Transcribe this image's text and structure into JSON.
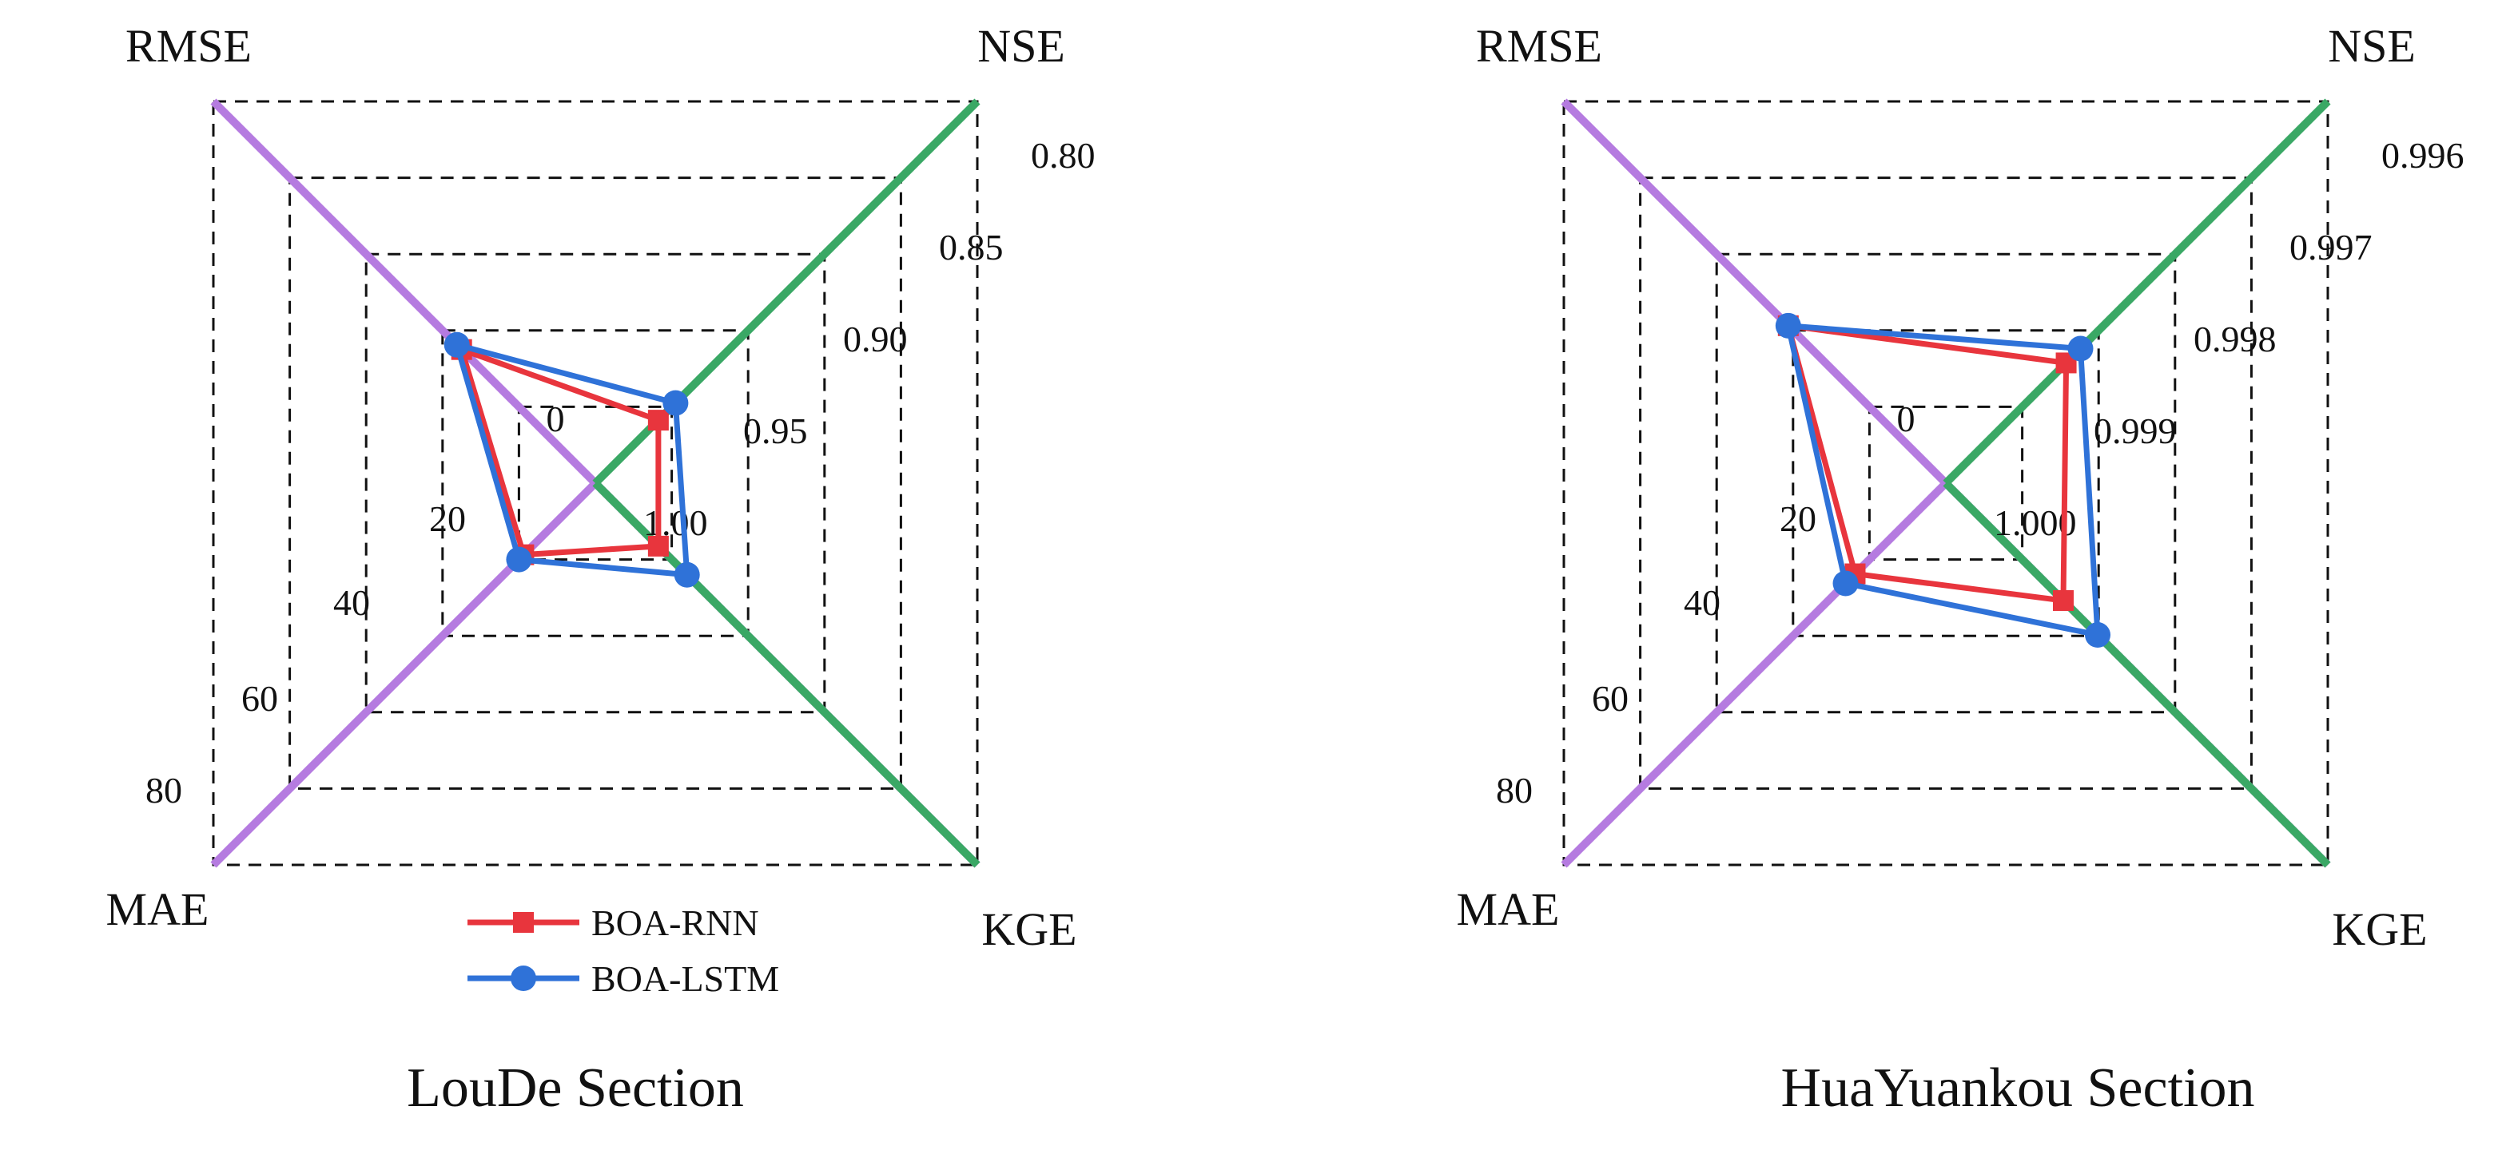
{
  "colors": {
    "rmse_mae_axis": "#b57be0",
    "nse_kge_axis": "#3aa865",
    "rnn": "#e8353d",
    "lstm": "#2f72d8",
    "grid": "#111111"
  },
  "legend": {
    "items": [
      {
        "label": "BOA-RNN",
        "color": "#e8353d",
        "marker": "square"
      },
      {
        "label": "BOA-LSTM",
        "color": "#2f72d8",
        "marker": "circle"
      }
    ]
  },
  "chart_data": [
    {
      "type": "radar",
      "title": "LouDe Section",
      "axes": [
        "RMSE",
        "NSE",
        "KGE",
        "MAE"
      ],
      "error_ticks": [
        "0",
        "20",
        "40",
        "60",
        "80"
      ],
      "error_range": [
        0,
        80
      ],
      "score_ticks": [
        "1.00",
        "0.95",
        "0.90",
        "0.85",
        "0.80"
      ],
      "score_range": [
        1.0,
        0.8
      ],
      "grid": true,
      "legend_position": "bottom-center",
      "series": [
        {
          "name": "BOA-RNN",
          "values": {
            "RMSE": 28,
            "NSE": 0.967,
            "KGE": 0.967,
            "MAE": 15
          }
        },
        {
          "name": "BOA-LSTM",
          "values": {
            "RMSE": 29,
            "NSE": 0.958,
            "KGE": 0.952,
            "MAE": 16
          }
        }
      ]
    },
    {
      "type": "radar",
      "title": "HuaYuankou Section",
      "axes": [
        "RMSE",
        "NSE",
        "KGE",
        "MAE"
      ],
      "error_ticks": [
        "0",
        "20",
        "40",
        "60",
        "80"
      ],
      "error_range": [
        0,
        80
      ],
      "score_ticks": [
        "1.000",
        "0.999",
        "0.998",
        "0.997",
        "0.996"
      ],
      "score_range": [
        1.0,
        0.996
      ],
      "grid": true,
      "legend_position": "none",
      "series": [
        {
          "name": "BOA-RNN",
          "values": {
            "RMSE": 33,
            "NSE": 0.99874,
            "KGE": 0.99877,
            "MAE": 19
          }
        },
        {
          "name": "BOA-LSTM",
          "values": {
            "RMSE": 33,
            "NSE": 0.99859,
            "KGE": 0.99841,
            "MAE": 21
          }
        }
      ]
    }
  ]
}
